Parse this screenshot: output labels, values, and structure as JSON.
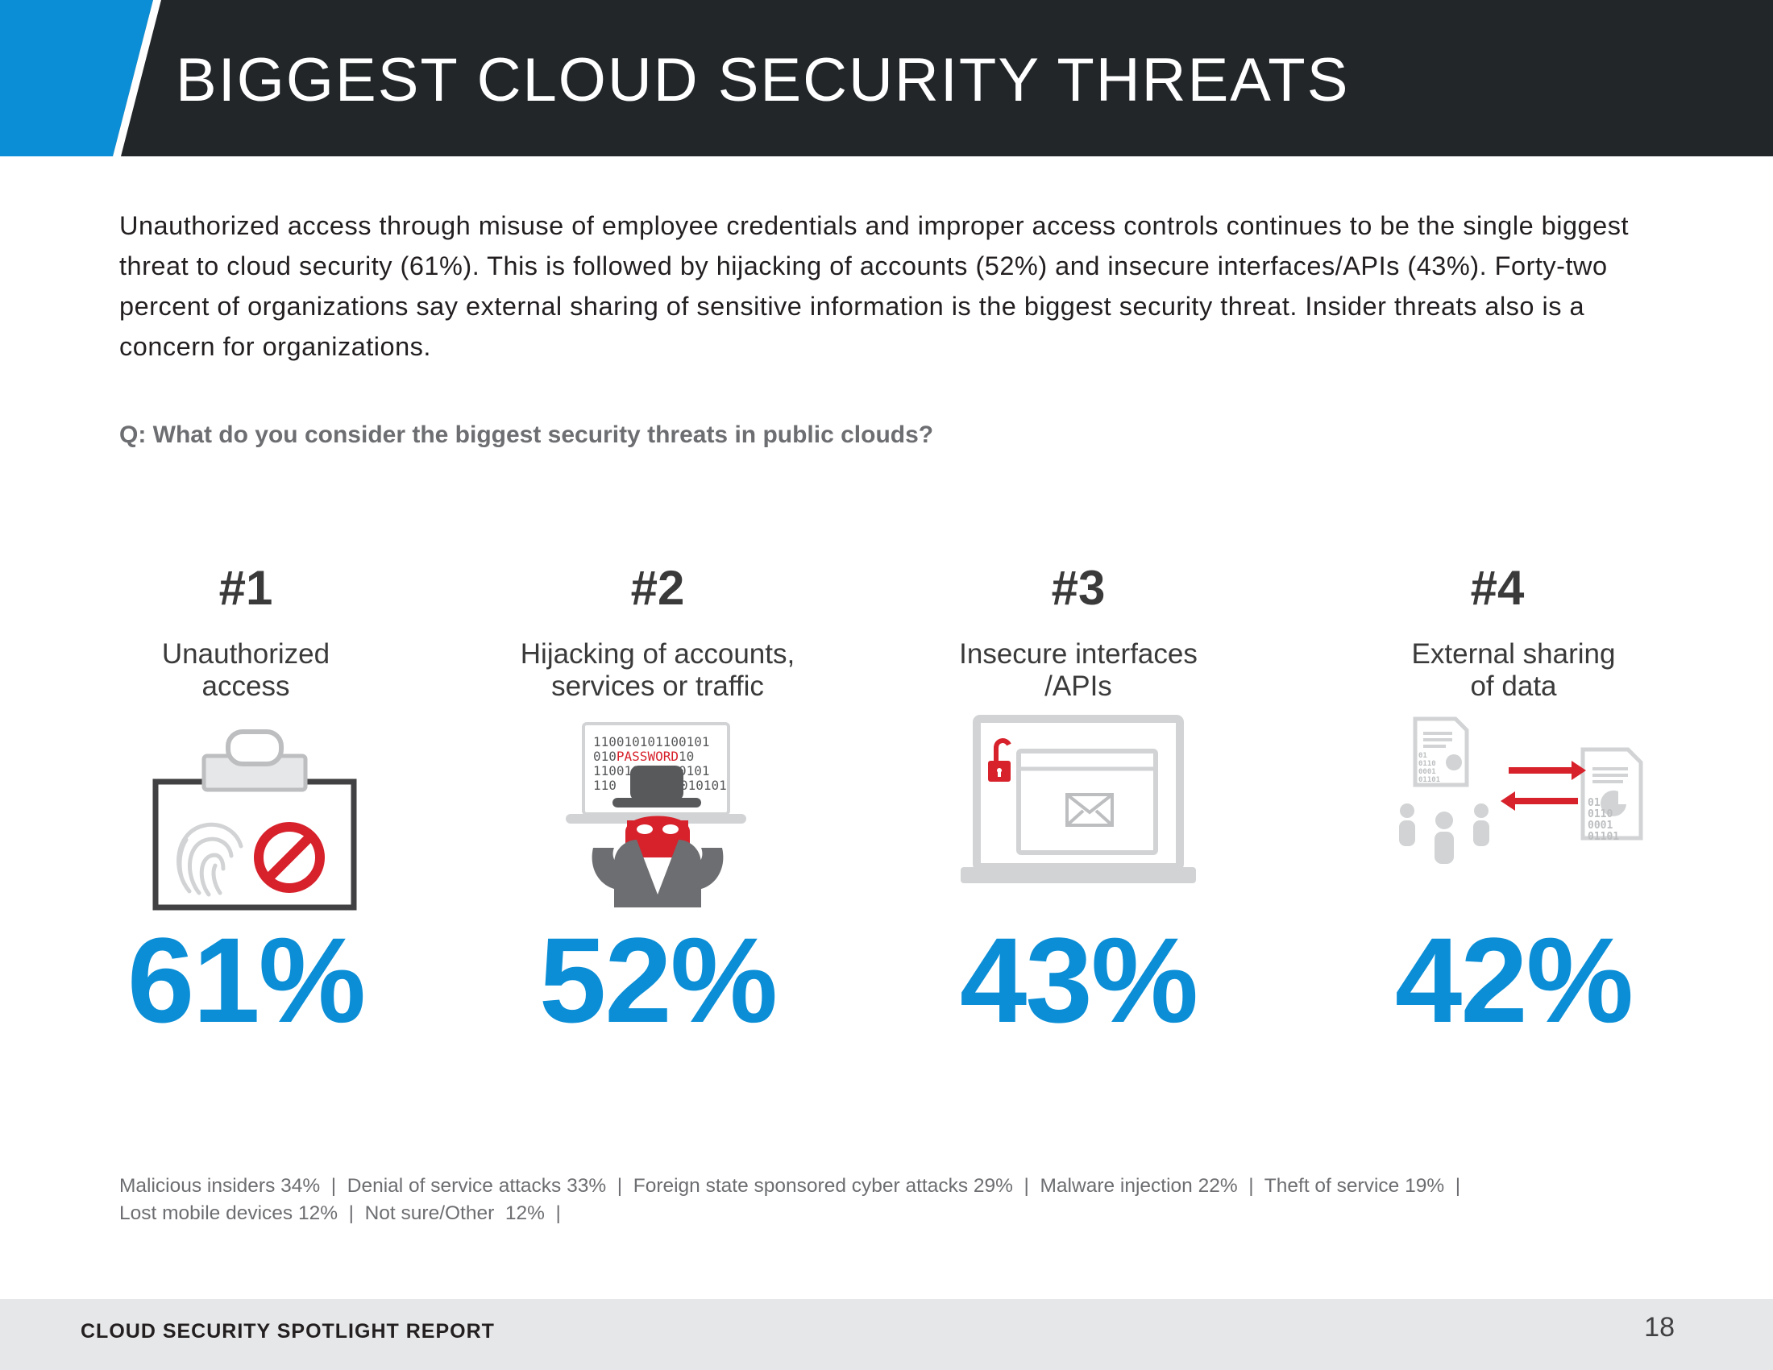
{
  "header": {
    "title": "BIGGEST CLOUD SECURITY THREATS"
  },
  "intro": "Unauthorized access through misuse of employee credentials and improper access controls continues to be the single biggest threat to cloud security (61%). This is followed by hijacking of accounts (52%) and insecure interfaces/APIs (43%). Forty-two percent of organizations say external sharing of sensitive information is the biggest security threat. Insider threats also is a concern for organizations.",
  "question": "Q: What do you consider the biggest security threats in public clouds?",
  "threats": [
    {
      "rank": "#1",
      "label_line1": "Unauthorized",
      "label_line2": "access",
      "percent": "61%",
      "icon": "clipboard-fingerprint-blocked-icon"
    },
    {
      "rank": "#2",
      "label_line1": "Hijacking of accounts,",
      "label_line2": "services or traffic",
      "percent": "52%",
      "icon": "hacker-laptop-icon",
      "icon_text": [
        "110010101100101",
        "010",
        "PASSWORD",
        "10",
        "110010101100101",
        "110",
        "010101"
      ]
    },
    {
      "rank": "#3",
      "label_line1": "Insecure interfaces",
      "label_line2": "/APIs",
      "percent": "43%",
      "icon": "laptop-unlocked-mail-icon"
    },
    {
      "rank": "#4",
      "label_line1": "External sharing",
      "label_line2": "of data",
      "percent": "42%",
      "icon": "people-document-exchange-icon",
      "icon_text": [
        "01",
        "0110",
        "0001",
        "01101"
      ]
    }
  ],
  "others": {
    "line1": "Malicious insiders 34%  |  Denial of service attacks 33%  |  Foreign state sponsored cyber attacks 29%  |  Malware injection 22%  |  Theft of service 19%  |",
    "line2": "Lost mobile devices 12%  |  Not sure/Other  12%  |"
  },
  "footer": {
    "report_name": "CLOUD SECURITY SPOTLIGHT REPORT",
    "page_number": "18"
  },
  "colors": {
    "accent_blue": "#0b8ed6",
    "header_dark": "#222629",
    "alert_red": "#d7212b",
    "icon_gray": "#bcbec0"
  }
}
